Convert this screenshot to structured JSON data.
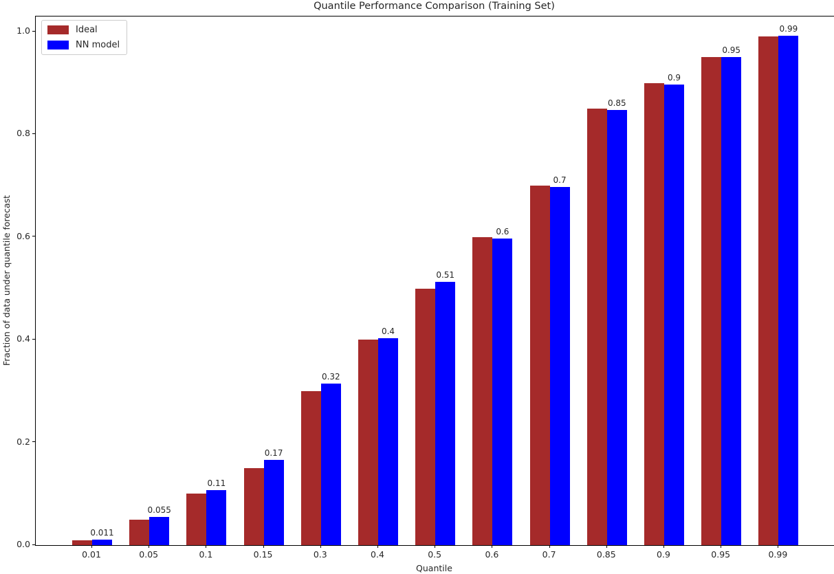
{
  "chart_data": {
    "type": "bar",
    "title": "Quantile Performance Comparison (Training Set)",
    "xlabel": "Quantile",
    "ylabel": "Fraction of data under quantile forecast",
    "categories": [
      "0.01",
      "0.05",
      "0.1",
      "0.15",
      "0.3",
      "0.4",
      "0.5",
      "0.6",
      "0.7",
      "0.85",
      "0.9",
      "0.95",
      "0.99"
    ],
    "series": [
      {
        "name": "Ideal",
        "color": "#a52a2a",
        "values": [
          0.01,
          0.05,
          0.1,
          0.15,
          0.3,
          0.4,
          0.5,
          0.6,
          0.7,
          0.85,
          0.9,
          0.95,
          0.99
        ]
      },
      {
        "name": "NN model",
        "color": "#0000ff",
        "values": [
          0.011,
          0.055,
          0.107,
          0.166,
          0.315,
          0.403,
          0.513,
          0.597,
          0.698,
          0.847,
          0.897,
          0.951,
          0.992
        ],
        "labels": [
          "0.011",
          "0.055",
          "0.11",
          "0.17",
          "0.32",
          "0.4",
          "0.51",
          "0.6",
          "0.7",
          "0.85",
          "0.9",
          "0.95",
          "0.99"
        ]
      }
    ],
    "ylim": [
      0.0,
      1.03
    ],
    "yticks": [
      "0.0",
      "0.2",
      "0.4",
      "0.6",
      "0.8",
      "1.0"
    ],
    "grid": false,
    "legend_position": "upper left",
    "colors": {
      "spine": "#000000",
      "text": "#262626",
      "background": "#ffffff"
    }
  }
}
